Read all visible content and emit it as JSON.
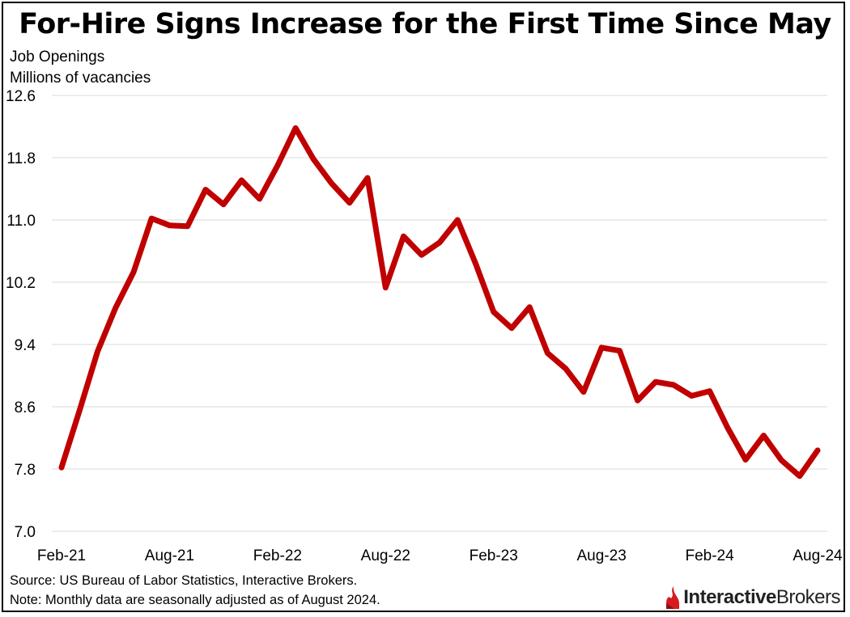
{
  "chart_data": {
    "type": "line",
    "title": "For-Hire Signs Increase for the First Time Since May",
    "ylabel_line1": "Job Openings",
    "ylabel_line2": "Millions of vacancies",
    "ylim": [
      7.0,
      12.6
    ],
    "yticks": [
      "12.6",
      "11.8",
      "11.0",
      "10.2",
      "9.4",
      "8.6",
      "7.8",
      "7.0"
    ],
    "ytick_values": [
      12.6,
      11.8,
      11.0,
      10.2,
      9.4,
      8.6,
      7.8,
      7.0
    ],
    "xticks": [
      {
        "label": "Feb-21",
        "index": 0
      },
      {
        "label": "Aug-21",
        "index": 6
      },
      {
        "label": "Feb-22",
        "index": 12
      },
      {
        "label": "Aug-22",
        "index": 18
      },
      {
        "label": "Feb-23",
        "index": 24
      },
      {
        "label": "Aug-23",
        "index": 30
      },
      {
        "label": "Feb-24",
        "index": 36
      },
      {
        "label": "Aug-24",
        "index": 42
      }
    ],
    "grid": true,
    "line_color": "#c00000",
    "series": [
      {
        "x": [
          "Feb-21",
          "Mar-21",
          "Apr-21",
          "May-21",
          "Jun-21",
          "Jul-21",
          "Aug-21",
          "Sep-21",
          "Oct-21",
          "Nov-21",
          "Dec-21",
          "Jan-22",
          "Feb-22",
          "Mar-22",
          "Apr-22",
          "May-22",
          "Jun-22",
          "Jul-22",
          "Aug-22",
          "Sep-22",
          "Oct-22",
          "Nov-22",
          "Dec-22",
          "Jan-23",
          "Feb-23",
          "Mar-23",
          "Apr-23",
          "May-23",
          "Jun-23",
          "Jul-23",
          "Aug-23",
          "Sep-23",
          "Oct-23",
          "Nov-23",
          "Dec-23",
          "Jan-24",
          "Feb-24",
          "Mar-24",
          "Apr-24",
          "May-24",
          "Jun-24",
          "Jul-24",
          "Aug-24"
        ],
        "values": [
          7.82,
          8.55,
          9.31,
          9.87,
          10.33,
          11.02,
          10.93,
          10.92,
          11.39,
          11.2,
          11.51,
          11.27,
          11.7,
          12.18,
          11.78,
          11.47,
          11.22,
          11.54,
          10.13,
          10.79,
          10.55,
          10.71,
          11.0,
          10.44,
          9.82,
          9.61,
          9.88,
          9.29,
          9.09,
          8.79,
          9.36,
          9.32,
          8.68,
          8.92,
          8.88,
          8.74,
          8.8,
          8.33,
          7.92,
          8.23,
          7.91,
          7.71,
          8.04
        ]
      }
    ]
  },
  "footer": {
    "source": "Source: US Bureau of Labor Statistics, Interactive Brokers.",
    "note": "Note: Monthly data are seasonally adjusted as of August 2024."
  },
  "logo": {
    "part1": "Interactive",
    "part2": "Brokers",
    "icon": "interactive-brokers-flame-icon",
    "color": "#d71920"
  }
}
